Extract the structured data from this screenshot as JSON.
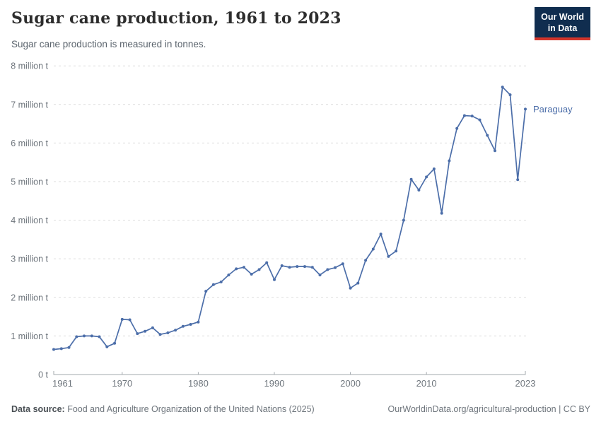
{
  "header": {
    "title": "Sugar cane production, 1961 to 2023",
    "subtitle": "Sugar cane production is measured in tonnes."
  },
  "logo": {
    "line1": "Our World",
    "line2": "in Data"
  },
  "chart_data": {
    "type": "line",
    "title": "Sugar cane production, 1961 to 2023",
    "unit": "tonnes",
    "values_unit": "million tonnes",
    "x_range": [
      1961,
      2023
    ],
    "y_range_million_t": [
      0,
      8
    ],
    "grid": "dashed horizontal",
    "legend_position": "end-of-line label",
    "x_ticks": [
      1961,
      1970,
      1980,
      1990,
      2000,
      2010,
      2023
    ],
    "y_ticks": [
      {
        "v": 0,
        "label": "0 t"
      },
      {
        "v": 1,
        "label": "1 million t"
      },
      {
        "v": 2,
        "label": "2 million t"
      },
      {
        "v": 3,
        "label": "3 million t"
      },
      {
        "v": 4,
        "label": "4 million t"
      },
      {
        "v": 5,
        "label": "5 million t"
      },
      {
        "v": 6,
        "label": "6 million t"
      },
      {
        "v": 7,
        "label": "7 million t"
      },
      {
        "v": 8,
        "label": "8 million t"
      }
    ],
    "series": [
      {
        "name": "Paraguay",
        "color": "#4c6ea9",
        "years": [
          1961,
          1962,
          1963,
          1964,
          1965,
          1966,
          1967,
          1968,
          1969,
          1970,
          1971,
          1972,
          1973,
          1974,
          1975,
          1976,
          1977,
          1978,
          1979,
          1980,
          1981,
          1982,
          1983,
          1984,
          1985,
          1986,
          1987,
          1988,
          1989,
          1990,
          1991,
          1992,
          1993,
          1994,
          1995,
          1996,
          1997,
          1998,
          1999,
          2000,
          2001,
          2002,
          2003,
          2004,
          2005,
          2006,
          2007,
          2008,
          2009,
          2010,
          2011,
          2012,
          2013,
          2014,
          2015,
          2016,
          2017,
          2018,
          2019,
          2020,
          2021,
          2022,
          2023
        ],
        "values_million_t": [
          0.65,
          0.67,
          0.7,
          0.98,
          1.0,
          1.0,
          0.98,
          0.72,
          0.81,
          1.43,
          1.42,
          1.06,
          1.12,
          1.21,
          1.04,
          1.08,
          1.15,
          1.25,
          1.3,
          1.36,
          2.16,
          2.33,
          2.4,
          2.58,
          2.74,
          2.78,
          2.6,
          2.72,
          2.9,
          2.46,
          2.82,
          2.78,
          2.8,
          2.8,
          2.78,
          2.58,
          2.72,
          2.77,
          2.87,
          2.24,
          2.37,
          2.96,
          3.25,
          3.64,
          3.06,
          3.2,
          4.0,
          5.06,
          4.78,
          5.12,
          5.33,
          4.18,
          5.54,
          6.38,
          6.71,
          6.7,
          6.6,
          6.2,
          5.8,
          7.45,
          7.25,
          5.05,
          6.88
        ]
      }
    ]
  },
  "colors": {
    "line": "#4c6ea9",
    "grid": "#dcdcdc",
    "axis": "#a3a9ae",
    "tick_text": "#6f767d",
    "logo_bg": "#102d4f",
    "logo_red": "#d2352b"
  },
  "footer": {
    "source_label": "Data source:",
    "source_text": " Food and Agriculture Organization of the United Nations (2025)",
    "right_text": "OurWorldinData.org/agricultural-production | CC BY"
  }
}
